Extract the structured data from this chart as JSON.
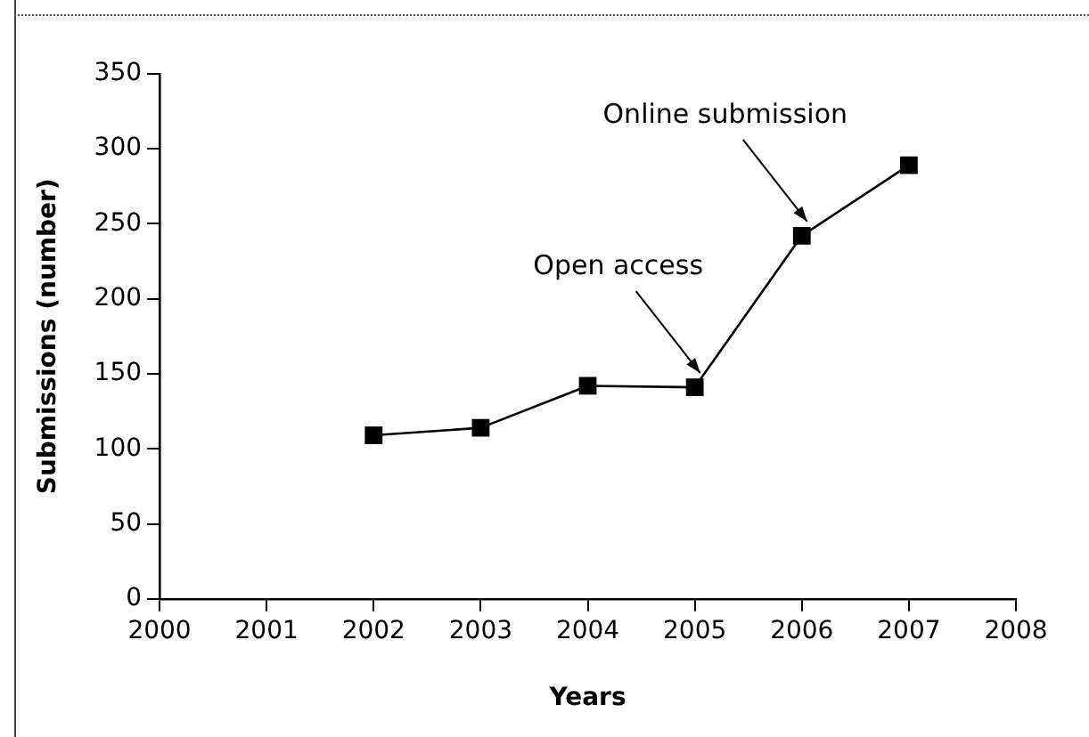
{
  "chart_data": {
    "type": "line",
    "xlabel": "Years",
    "ylabel": "Submissions (number)",
    "x": [
      2002,
      2003,
      2004,
      2005,
      2006,
      2007
    ],
    "series": [
      {
        "color": "#000000",
        "values": [
          109,
          114,
          142,
          141,
          242,
          289
        ]
      }
    ],
    "xlim": [
      2000,
      2008
    ],
    "xticks": [
      2000,
      2001,
      2002,
      2003,
      2004,
      2005,
      2006,
      2007,
      2008
    ],
    "ylim": [
      0,
      350
    ],
    "yticks": [
      0,
      50,
      100,
      150,
      200,
      250,
      300,
      350
    ],
    "annotations": [
      {
        "text": "Open access",
        "x": 2005,
        "y": 141
      },
      {
        "text": "Online submission",
        "x": 2006,
        "y": 242
      }
    ],
    "grid": false,
    "legend": false,
    "marker": "square",
    "line_style": "solid"
  }
}
